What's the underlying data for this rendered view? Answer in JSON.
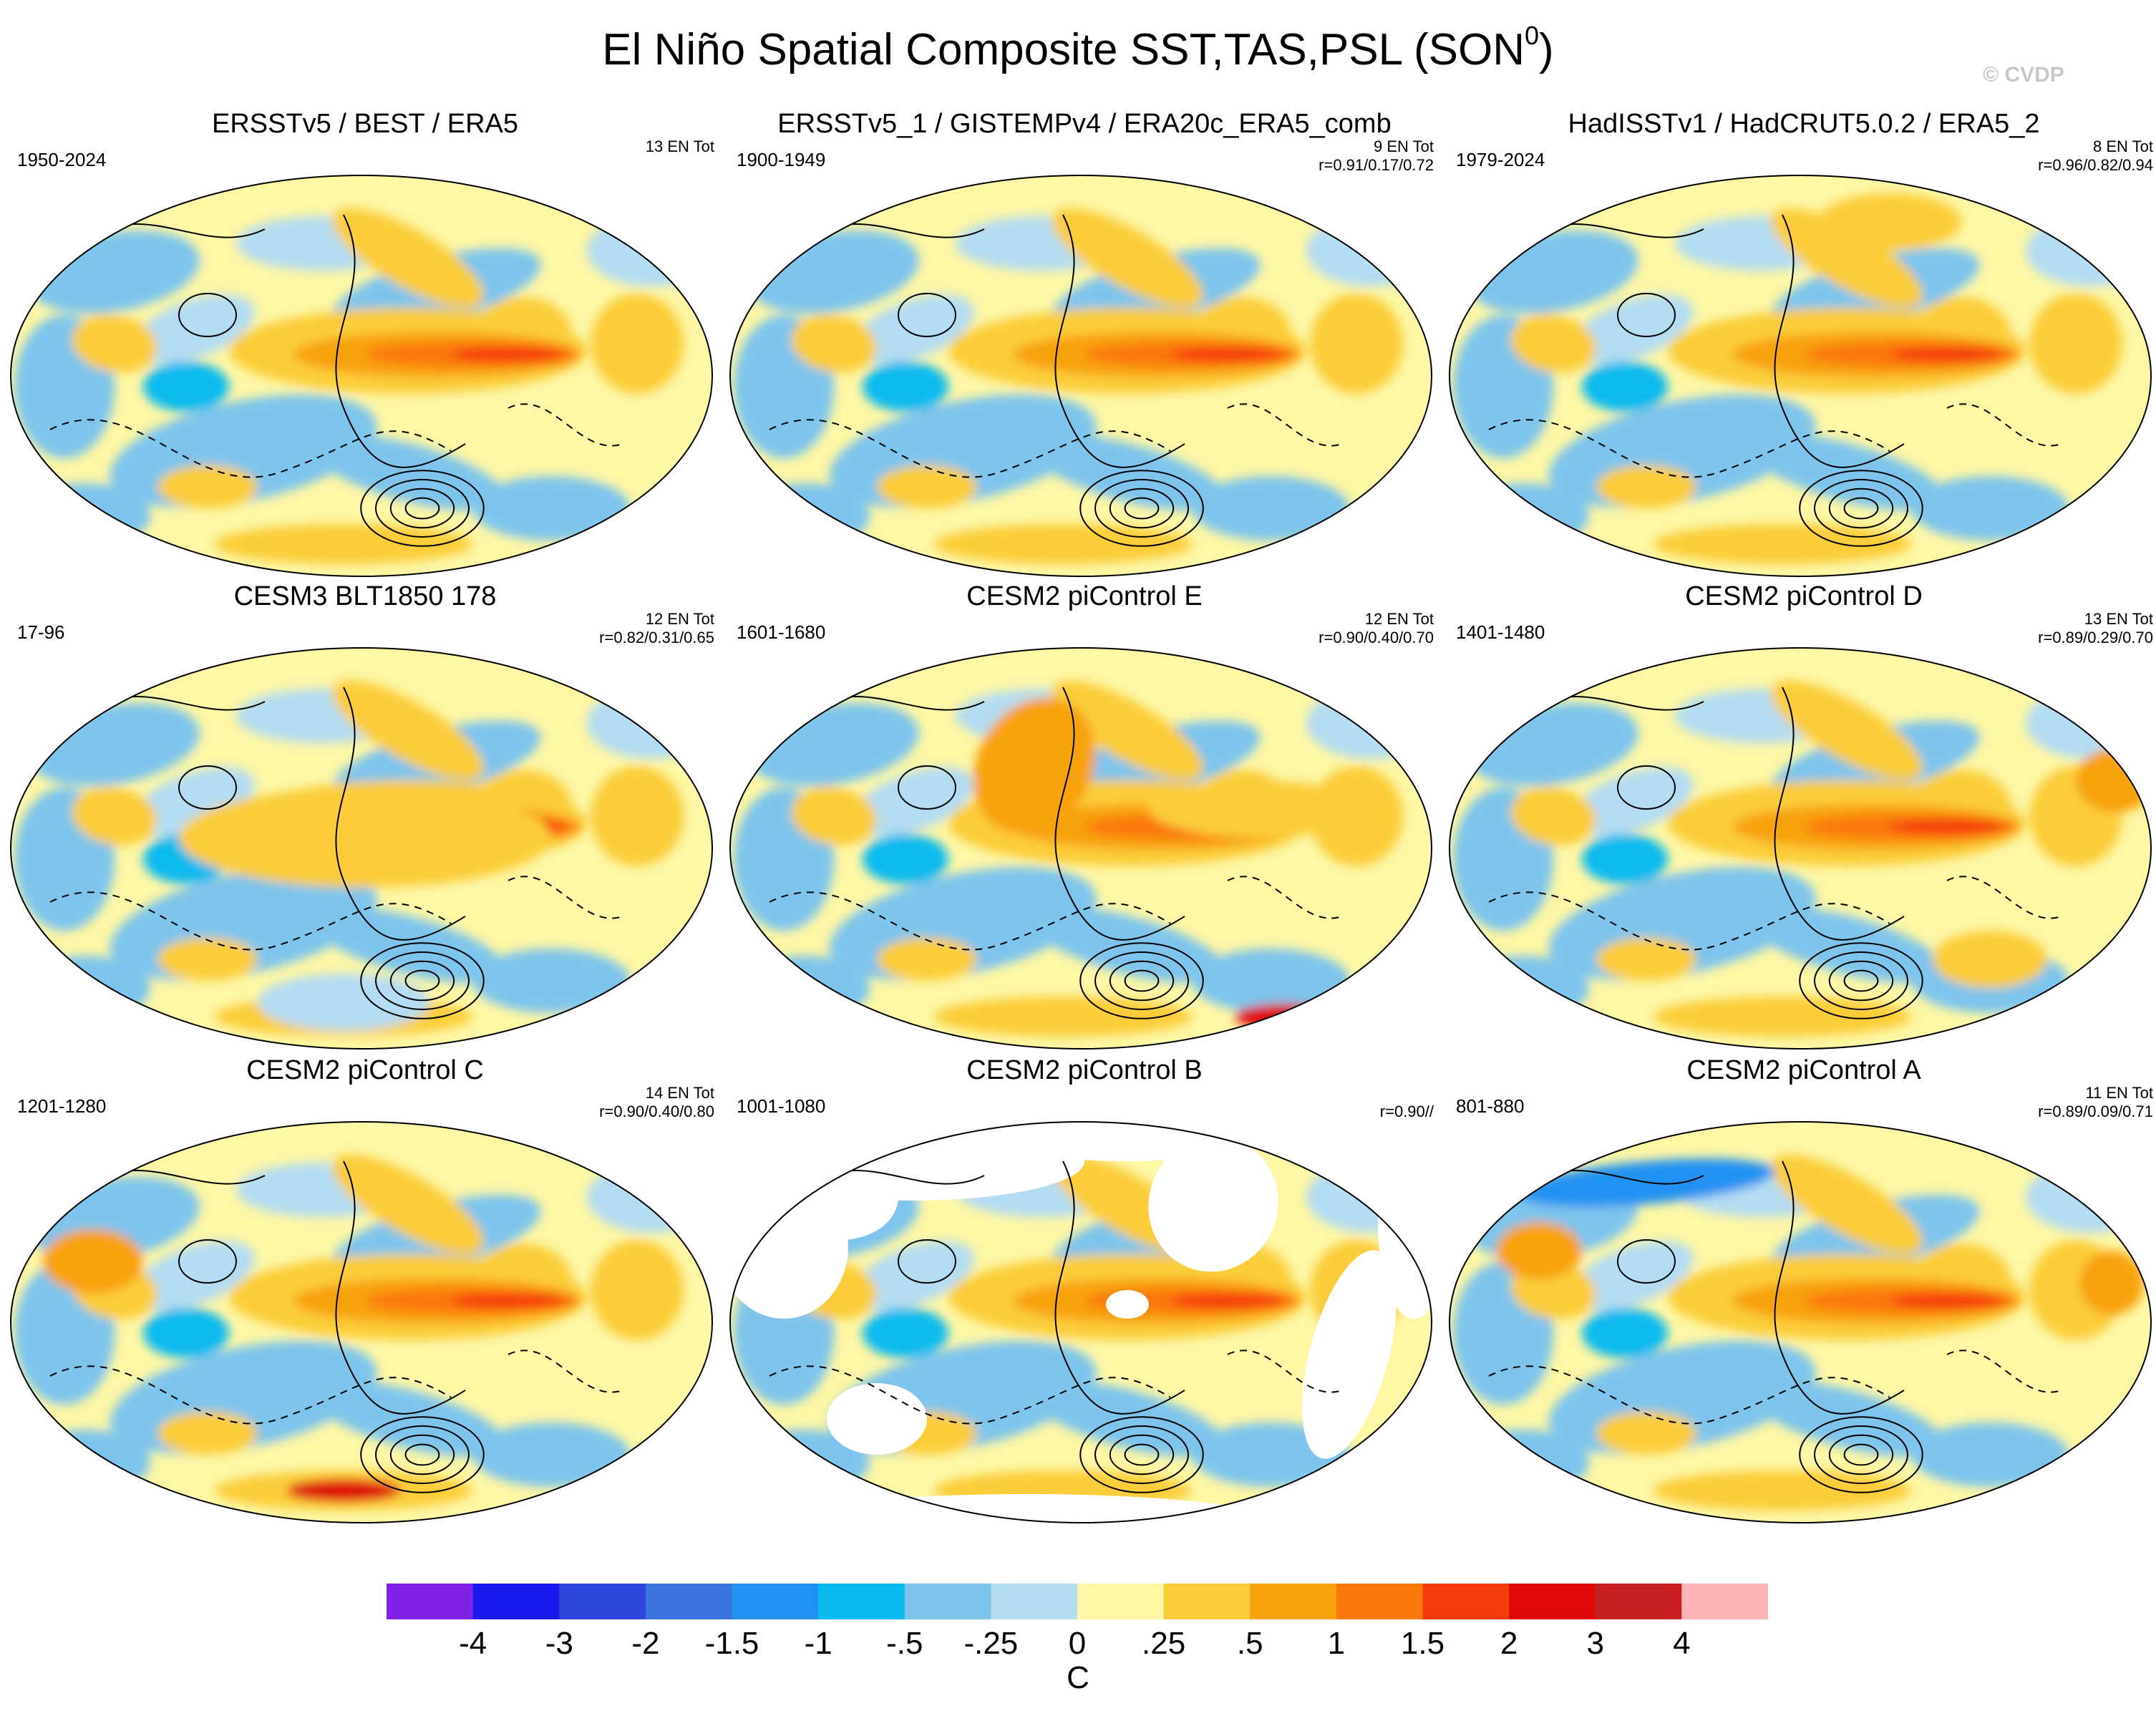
{
  "title": {
    "main": "El Niño Spatial Composite SST,TAS,PSL (SON",
    "sup": "0",
    "close": ")"
  },
  "copyright": "© CVDP",
  "chart_data": {
    "type": "heatmap",
    "projection": "Robinson global map, Pacific-centered",
    "variables": [
      "SST",
      "TAS",
      "PSL"
    ],
    "panels": [
      {
        "title": "ERSSTv5 / BEST / ERA5",
        "years": "1950-2024",
        "events": "13 EN Tot",
        "corr": ""
      },
      {
        "title": "ERSSTv5_1 / GISTEMPv4 / ERA20c_ERA5_comb",
        "years": "1900-1949",
        "events": "9 EN Tot",
        "corr": "r=0.91/0.17/0.72"
      },
      {
        "title": "HadISSTv1 / HadCRUT5.0.2 / ERA5_2",
        "years": "1979-2024",
        "events": "8 EN Tot",
        "corr": "r=0.96/0.82/0.94"
      },
      {
        "title": "CESM3 BLT1850 178",
        "years": "17-96",
        "events": "12 EN Tot",
        "corr": "r=0.82/0.31/0.65"
      },
      {
        "title": "CESM2 piControl E",
        "years": "1601-1680",
        "events": "12 EN Tot",
        "corr": "r=0.90/0.40/0.70"
      },
      {
        "title": "CESM2 piControl D",
        "years": "1401-1480",
        "events": "13 EN Tot",
        "corr": "r=0.89/0.29/0.70"
      },
      {
        "title": "CESM2 piControl C",
        "years": "1201-1280",
        "events": "14 EN Tot",
        "corr": "r=0.90/0.40/0.80"
      },
      {
        "title": "CESM2 piControl B",
        "years": "1001-1080",
        "events": "",
        "corr": "r=0.90//"
      },
      {
        "title": "CESM2 piControl A",
        "years": "801-880",
        "events": "11 EN Tot",
        "corr": "r=0.89/0.09/0.71"
      }
    ],
    "colorbar": {
      "units": "C",
      "labels": [
        "-4",
        "-3",
        "-2",
        "-1.5",
        "-1",
        "-.5",
        "-.25",
        "0",
        ".25",
        ".5",
        "1",
        "1.5",
        "2",
        "3",
        "4"
      ],
      "colors": [
        "#8020e8",
        "#1a1aee",
        "#2e46dc",
        "#3a72de",
        "#2292f2",
        "#08baee",
        "#7ec4ec",
        "#b4dcf2",
        "#fdf7a6",
        "#fbcd3a",
        "#f8a20c",
        "#fb780a",
        "#f53a0c",
        "#de0808",
        "#c82020",
        "#fcb6b6"
      ]
    }
  }
}
